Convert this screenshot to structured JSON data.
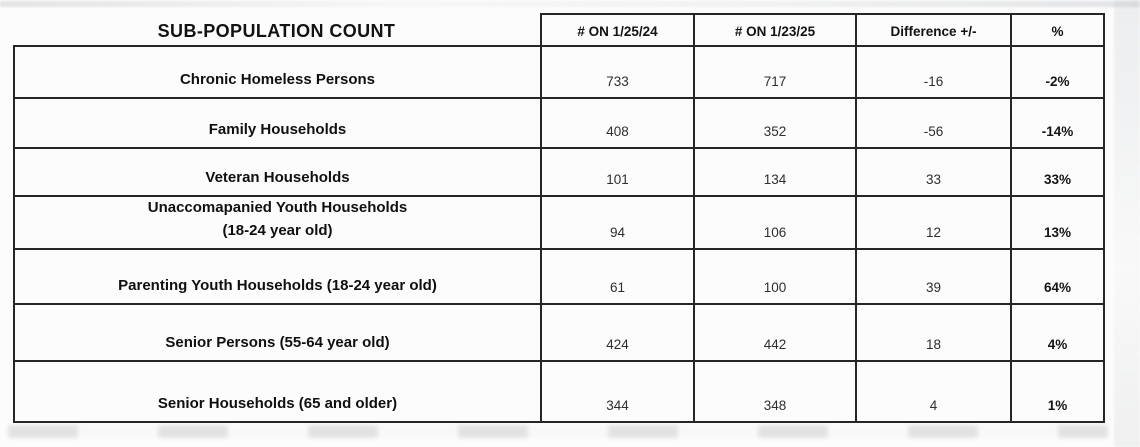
{
  "table": {
    "header": {
      "label": "SUB-POPULATION COUNT",
      "col_2024": "# ON 1/25/24",
      "col_2025": "# ON 1/23/25",
      "col_diff": "Difference +/-",
      "col_pct": "%"
    },
    "rows": [
      {
        "label": "Chronic Homeless Persons",
        "label_line2": "",
        "count_2024": "733",
        "count_2025": "717",
        "difference": "-16",
        "percent": "-2%"
      },
      {
        "label": "Family Households",
        "label_line2": "",
        "count_2024": "408",
        "count_2025": "352",
        "difference": "-56",
        "percent": "-14%"
      },
      {
        "label": "Veteran Households",
        "label_line2": "",
        "count_2024": "101",
        "count_2025": "134",
        "difference": "33",
        "percent": "33%"
      },
      {
        "label": "Unaccomapanied Youth Households",
        "label_line2": "(18-24 year old)",
        "count_2024": "94",
        "count_2025": "106",
        "difference": "12",
        "percent": "13%"
      },
      {
        "label": "Parenting Youth Households (18-24 year old)",
        "label_line2": "",
        "count_2024": "61",
        "count_2025": "100",
        "difference": "39",
        "percent": "64%"
      },
      {
        "label": "Senior Persons (55-64 year old)",
        "label_line2": "",
        "count_2024": "424",
        "count_2025": "442",
        "difference": "18",
        "percent": "4%"
      },
      {
        "label": "Senior Households (65 and older)",
        "label_line2": "",
        "count_2024": "344",
        "count_2025": "348",
        "difference": "4",
        "percent": "1%"
      }
    ]
  }
}
